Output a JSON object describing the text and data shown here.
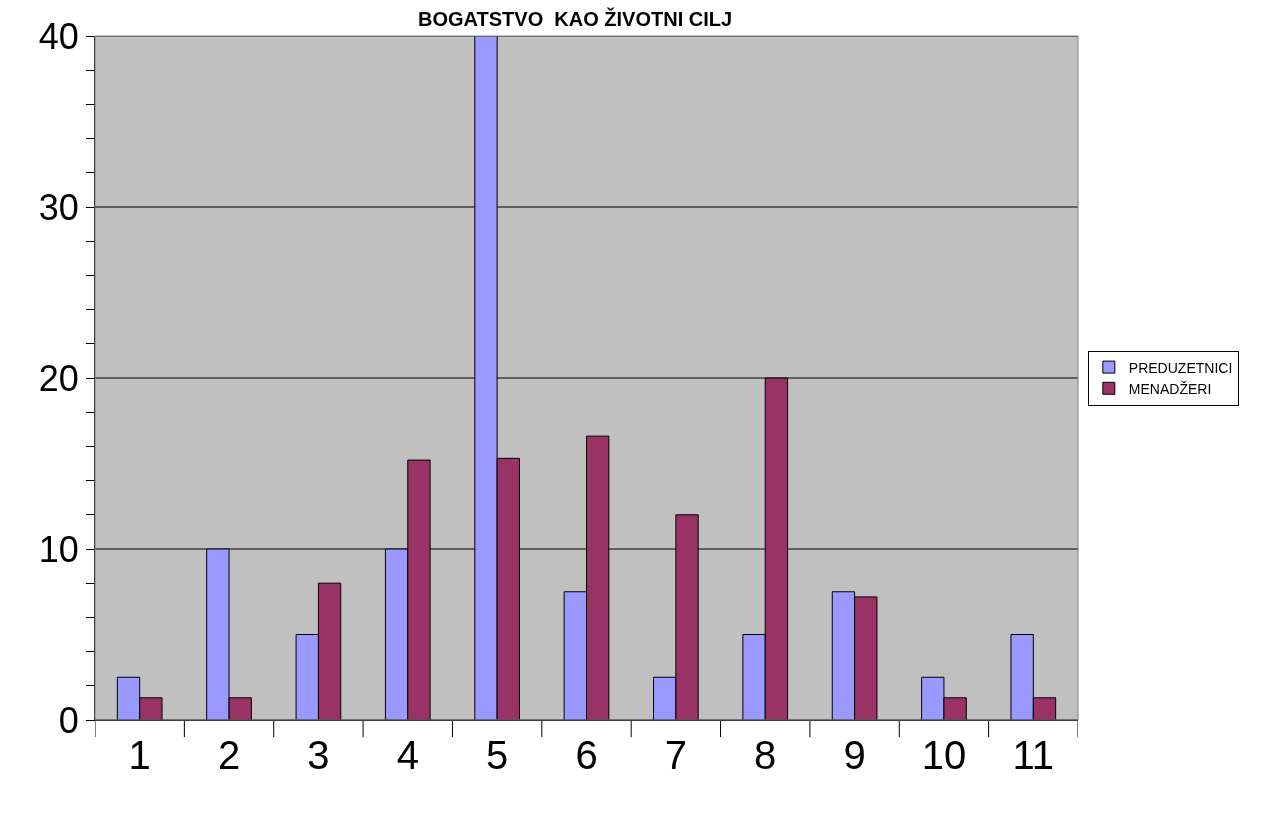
{
  "chart_data": {
    "type": "bar",
    "title": "BOGATSTVO  KAO ŽIVOTNI CILJ",
    "categories": [
      "1",
      "2",
      "3",
      "4",
      "5",
      "6",
      "7",
      "8",
      "9",
      "10",
      "11"
    ],
    "series": [
      {
        "name": "PREDUZETNICI",
        "color": "#9999ff",
        "values": [
          2.5,
          10,
          5,
          10,
          40,
          7.5,
          2.5,
          5,
          7.5,
          2.5,
          5
        ]
      },
      {
        "name": "MENADŽERI",
        "color": "#993366",
        "values": [
          1.3,
          1.3,
          8,
          15.2,
          15.3,
          16.6,
          12,
          20,
          7.2,
          1.3,
          1.3
        ]
      }
    ],
    "ylim": [
      0,
      40
    ],
    "yticks": [
      0,
      {
        "value": 2,
        "label": null
      },
      {
        "value": 4,
        "label": null
      },
      {
        "value": 6,
        "label": null
      },
      {
        "value": 8,
        "label": null
      },
      10,
      {
        "value": 12,
        "label": null
      },
      {
        "value": 14,
        "label": null
      },
      {
        "value": 16,
        "label": null
      },
      {
        "value": 18,
        "label": null
      },
      20,
      {
        "value": 22,
        "label": null
      },
      {
        "value": 24,
        "label": null
      },
      {
        "value": 26,
        "label": null
      },
      {
        "value": 28,
        "label": null
      },
      30,
      {
        "value": 32,
        "label": null
      },
      {
        "value": 34,
        "label": null
      },
      {
        "value": 36,
        "label": null
      },
      {
        "value": 38,
        "label": null
      },
      40
    ],
    "grid": "y",
    "legend": "right"
  }
}
